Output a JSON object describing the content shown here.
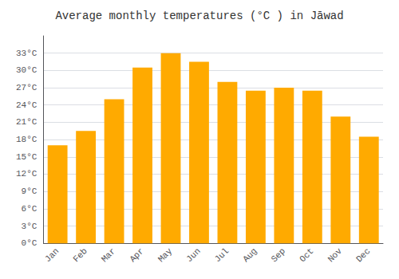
{
  "chart_data": {
    "type": "bar",
    "title": "Average monthly temperatures (°C ) in Jāwad",
    "categories": [
      "Jan",
      "Feb",
      "Mar",
      "Apr",
      "May",
      "Jun",
      "Jul",
      "Aug",
      "Sep",
      "Oct",
      "Nov",
      "Dec"
    ],
    "values": [
      17,
      19.5,
      25,
      30.5,
      33,
      31.5,
      28,
      26.5,
      27,
      26.5,
      22,
      18.5
    ],
    "color": "#FFAA00",
    "ylim": [
      0,
      36
    ],
    "yticks": [
      {
        "value": 0,
        "label": "0°C"
      },
      {
        "value": 3,
        "label": "3°C"
      },
      {
        "value": 6,
        "label": "6°C"
      },
      {
        "value": 9,
        "label": "9°C"
      },
      {
        "value": 12,
        "label": "12°C"
      },
      {
        "value": 15,
        "label": "15°C"
      },
      {
        "value": 18,
        "label": "18°C"
      },
      {
        "value": 21,
        "label": "21°C"
      },
      {
        "value": 24,
        "label": "24°C"
      },
      {
        "value": 27,
        "label": "27°C"
      },
      {
        "value": 30,
        "label": "30°C"
      },
      {
        "value": 33,
        "label": "33°C"
      }
    ],
    "grid": true
  }
}
